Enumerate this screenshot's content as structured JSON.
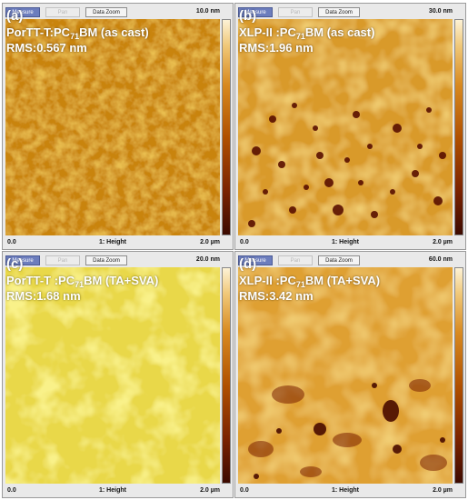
{
  "toolbar": {
    "measure_label": "Measure",
    "pan_label": "Pan",
    "zoom_label": "Data Zoom"
  },
  "colors": {
    "afm_dark": "#5a1700",
    "afm_mid": "#c06a10",
    "afm_light": "#e8c24a"
  },
  "panels": [
    {
      "z_max": "10.0 nm",
      "x_min": "0.0",
      "channel": "1: Height",
      "x_max": "2.0 µm",
      "label": "(a)",
      "title_prefix": "PorTT-T:PC",
      "title_sub": "71",
      "title_suffix": "BM (as cast)",
      "rms": "RMS:0.567 nm"
    },
    {
      "z_max": "30.0 nm",
      "x_min": "0.0",
      "channel": "1: Height",
      "x_max": "2.0 µm",
      "label": "(b)",
      "title_prefix": "XLP-II :PC",
      "title_sub": "71",
      "title_suffix": "BM (as cast)",
      "rms": "RMS:1.96 nm"
    },
    {
      "z_max": "20.0 nm",
      "x_min": "0.0",
      "channel": "1: Height",
      "x_max": "2.0 µm",
      "label": "(c)",
      "title_prefix": "PorTT-T :PC",
      "title_sub": "71",
      "title_suffix": "BM (TA+SVA)",
      "rms": "RMS:1.68 nm"
    },
    {
      "z_max": "60.0 nm",
      "x_min": "0.0",
      "channel": "1: Height",
      "x_max": "2.0 µm",
      "label": "(d)",
      "title_prefix": "XLP-II :PC",
      "title_sub": "71",
      "title_suffix": "BM (TA+SVA)",
      "rms": "RMS:3.42 nm"
    }
  ]
}
